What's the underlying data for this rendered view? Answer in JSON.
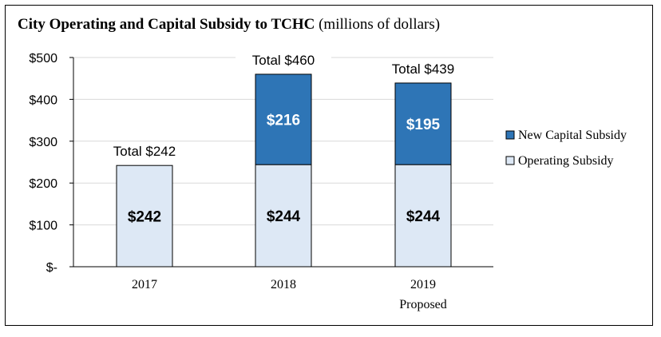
{
  "chart_data": {
    "type": "bar",
    "stacked": true,
    "title": "City Operating and Capital Subsidy to TCHC",
    "subtitle": "(millions of dollars)",
    "categories": [
      "2017",
      "2018",
      "2019"
    ],
    "category_sublabels": [
      "",
      "",
      "Proposed"
    ],
    "series": [
      {
        "name": "Operating Subsidy",
        "values": [
          242,
          244,
          244
        ],
        "labels": [
          "$242",
          "$244",
          "$244"
        ],
        "color": "#dde8f5"
      },
      {
        "name": "New Capital Subsidy",
        "values": [
          0,
          216,
          195
        ],
        "labels": [
          "",
          "$216",
          "$195"
        ],
        "color": "#2e75b6"
      }
    ],
    "totals": [
      "Total $242",
      "Total $460",
      "Total $439"
    ],
    "yticks": [
      "$-",
      "$100",
      "$200",
      "$300",
      "$400",
      "$500"
    ],
    "ytick_values": [
      0,
      100,
      200,
      300,
      400,
      500
    ],
    "ylim": [
      0,
      500
    ],
    "grid": true,
    "legend": "right",
    "legend_order": [
      "New Capital Subsidy",
      "Operating Subsidy"
    ]
  }
}
